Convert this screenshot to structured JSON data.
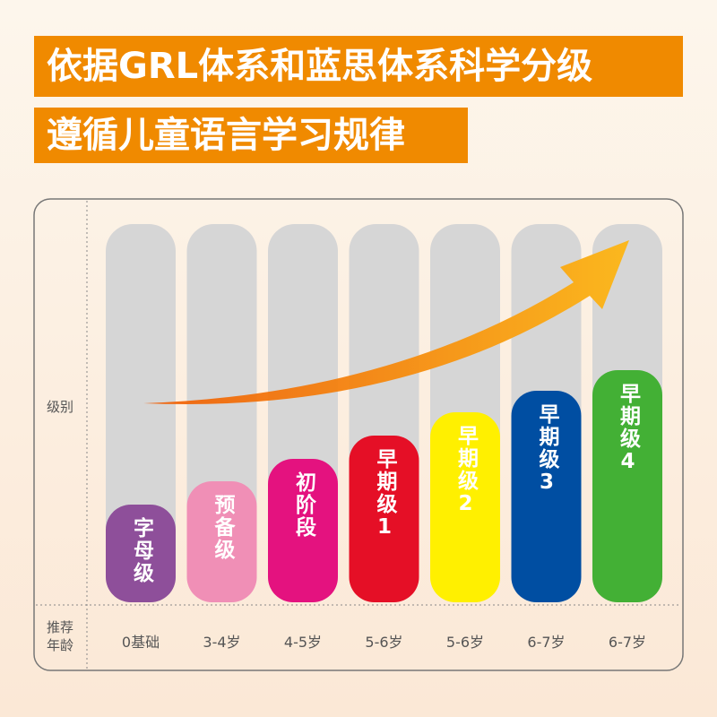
{
  "header": {
    "line1": "依据GRL体系和蓝思体系科学分级",
    "line2": "遵循儿童语言学习规律"
  },
  "axis": {
    "level": "级别",
    "age": "推荐年龄"
  },
  "levels": [
    {
      "label": "字母级",
      "age": "0基础",
      "color": "#8e4f9a"
    },
    {
      "label": "预备级",
      "age": "3-4岁",
      "color": "#f08fb6"
    },
    {
      "label": "初阶段",
      "age": "4-5岁",
      "color": "#e4127f"
    },
    {
      "label": "早期级1",
      "age": "5-6岁",
      "color": "#e50f26"
    },
    {
      "label": "早期级2",
      "age": "5-6岁",
      "color": "#fff000"
    },
    {
      "label": "早期级3",
      "age": "6-7岁",
      "color": "#004ea2"
    },
    {
      "label": "早期级4",
      "age": "6-7岁",
      "color": "#43b035"
    }
  ]
}
